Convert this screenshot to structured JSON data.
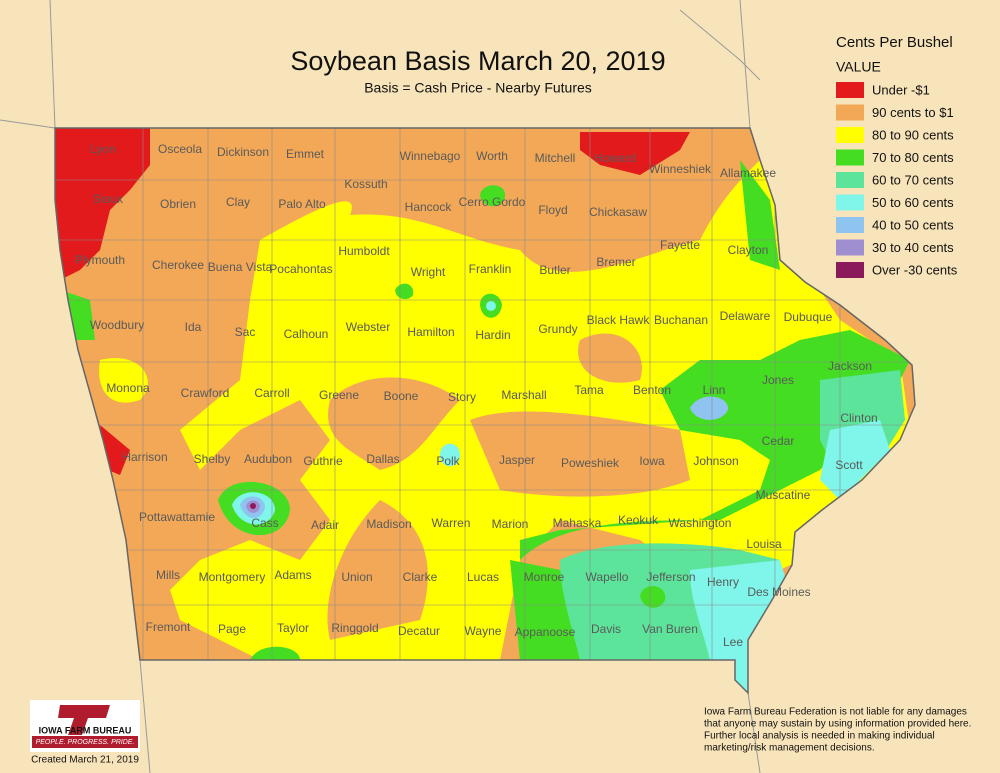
{
  "header": {
    "title": "Soybean Basis March 20, 2019",
    "subtitle": "Basis = Cash Price - Nearby Futures"
  },
  "legend": {
    "title": "Cents Per Bushel",
    "subtitle": "VALUE",
    "items": [
      {
        "label": "Under -$1",
        "color": "#e31a1c"
      },
      {
        "label": "90 cents to $1",
        "color": "#f2a857"
      },
      {
        "label": "80 to 90 cents",
        "color": "#ffff00"
      },
      {
        "label": "70 to 80 cents",
        "color": "#44dd22"
      },
      {
        "label": "60 to 70 cents",
        "color": "#5ce59a"
      },
      {
        "label": "50 to 60 cents",
        "color": "#80f5ea"
      },
      {
        "label": "40 to 50 cents",
        "color": "#8fc3f0"
      },
      {
        "label": "30 to 40 cents",
        "color": "#a08fd0"
      },
      {
        "label": "Over -30 cents",
        "color": "#8b1a5a"
      }
    ]
  },
  "counties": [
    "Lyon",
    "Osceola",
    "Dickinson",
    "Emmet",
    "Winnebago",
    "Worth",
    "Mitchell",
    "Howard",
    "Winneshiek",
    "Allamakee",
    "Sioux",
    "Obrien",
    "Clay",
    "Palo Alto",
    "Kossuth",
    "Hancock",
    "Cerro Gordo",
    "Floyd",
    "Chickasaw",
    "Plymouth",
    "Cherokee",
    "Buena Vista",
    "Pocahontas",
    "Humboldt",
    "Wright",
    "Franklin",
    "Butler",
    "Bremer",
    "Fayette",
    "Clayton",
    "Woodbury",
    "Ida",
    "Sac",
    "Calhoun",
    "Webster",
    "Hamilton",
    "Hardin",
    "Grundy",
    "Black Hawk",
    "Buchanan",
    "Delaware",
    "Dubuque",
    "Monona",
    "Crawford",
    "Carroll",
    "Greene",
    "Boone",
    "Story",
    "Marshall",
    "Tama",
    "Benton",
    "Linn",
    "Jones",
    "Jackson",
    "Harrison",
    "Shelby",
    "Audubon",
    "Guthrie",
    "Dallas",
    "Polk",
    "Jasper",
    "Poweshiek",
    "Iowa",
    "Johnson",
    "Cedar",
    "Clinton",
    "Scott",
    "Pottawattamie",
    "Cass",
    "Adair",
    "Madison",
    "Warren",
    "Marion",
    "Mahaska",
    "Keokuk",
    "Washington",
    "Muscatine",
    "Louisa",
    "Mills",
    "Montgomery",
    "Adams",
    "Union",
    "Clarke",
    "Lucas",
    "Monroe",
    "Wapello",
    "Jefferson",
    "Henry",
    "Des Moines",
    "Fremont",
    "Page",
    "Taylor",
    "Ringgold",
    "Decatur",
    "Wayne",
    "Appanoose",
    "Davis",
    "Van Buren",
    "Lee"
  ],
  "disclaimer": [
    "Iowa Farm Bureau Federation is not liable for any damages",
    "that anyone may sustain by using information provided here.",
    "Further local analysis is needed in making individual",
    "marketing/risk management decisions."
  ],
  "logo": {
    "name": "IOWA FARM BUREAU",
    "tagline": "PEOPLE. PROGRESS. PRIDE.",
    "created": "Created March 21, 2019"
  }
}
